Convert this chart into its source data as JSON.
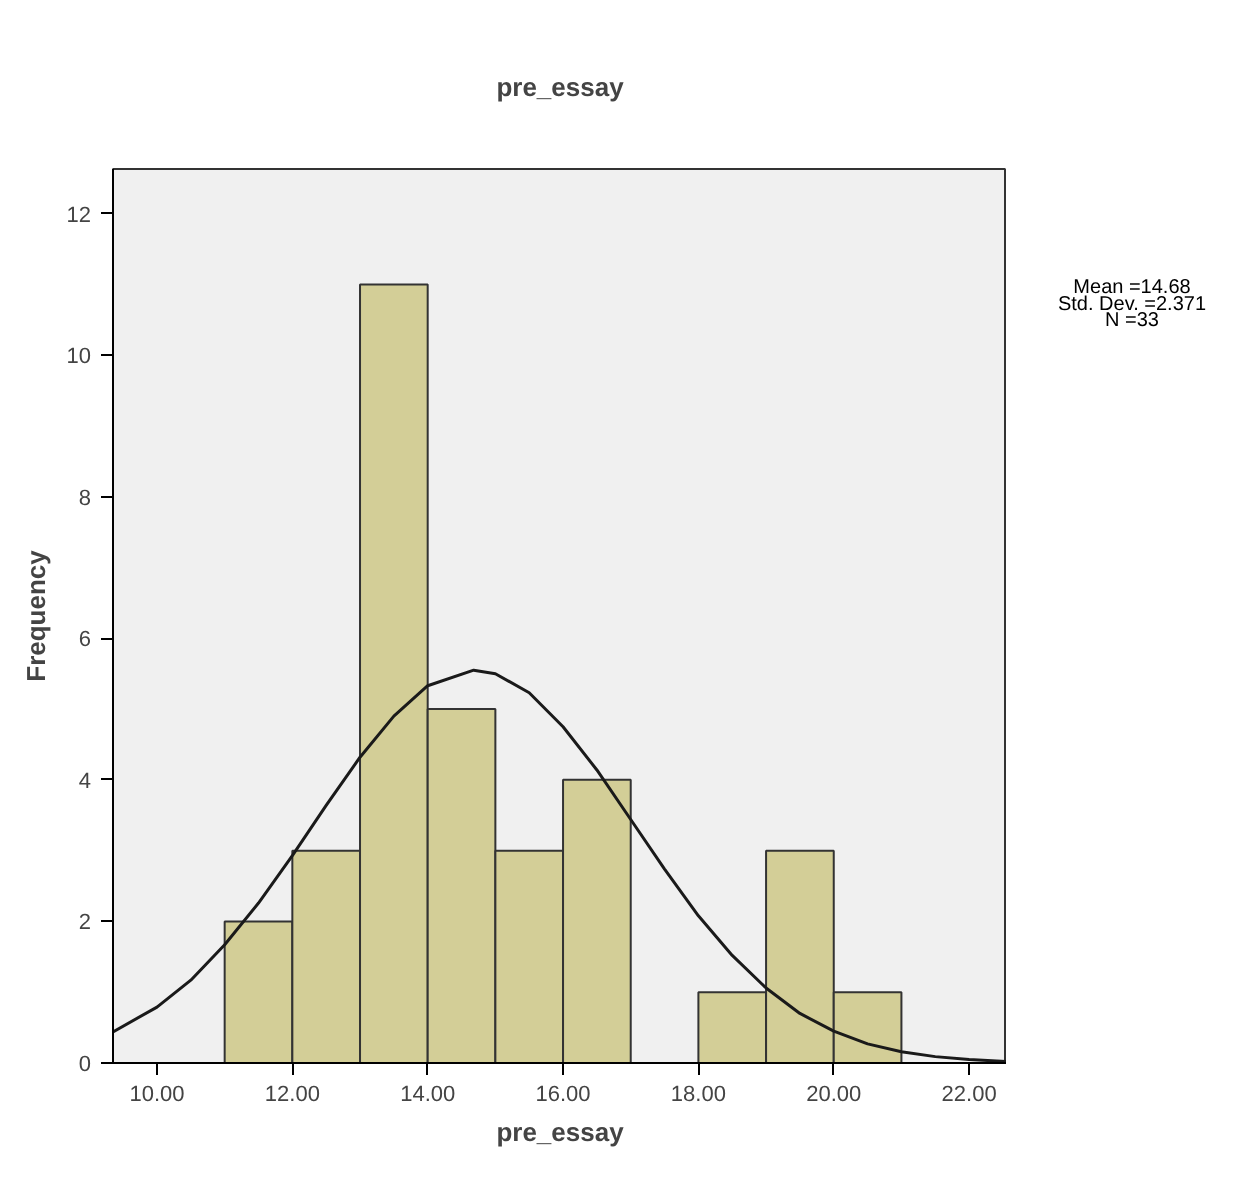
{
  "chart_data": {
    "type": "histogram",
    "title": "pre_essay",
    "xlabel": "pre_essay",
    "ylabel": "Frequency",
    "bins": [
      11,
      12,
      13,
      14,
      15,
      16,
      17,
      18,
      19,
      20,
      21
    ],
    "series": [
      {
        "color": "#d3ce97",
        "values": [
          2,
          3,
          11,
          5,
          3,
          4,
          0,
          1,
          3,
          1
        ]
      },
      {
        "type": "line",
        "color": "#1a1a1a",
        "x": [
          9.35,
          10,
          10.5,
          11,
          11.5,
          12,
          12.5,
          13,
          13.5,
          14,
          14.68,
          15,
          15.5,
          16,
          16.5,
          17,
          17.5,
          18,
          18.5,
          19,
          19.5,
          20,
          20.5,
          21,
          21.5,
          22,
          22.56
        ],
        "values": [
          0.44,
          0.79,
          1.17,
          1.67,
          2.26,
          2.93,
          3.64,
          4.32,
          4.9,
          5.33,
          5.55,
          5.5,
          5.23,
          4.75,
          4.14,
          3.44,
          2.74,
          2.08,
          1.52,
          1.06,
          0.7,
          0.45,
          0.27,
          0.16,
          0.09,
          0.05,
          0.02
        ]
      }
    ],
    "xlim": [
      9.35,
      22.56
    ],
    "ylim": [
      0,
      12.63
    ],
    "xticks": [
      {
        "value": 10,
        "label": "10.00"
      },
      {
        "value": 12,
        "label": "12.00"
      },
      {
        "value": 14,
        "label": "14.00"
      },
      {
        "value": 16,
        "label": "16.00"
      },
      {
        "value": 18,
        "label": "18.00"
      },
      {
        "value": 20,
        "label": "20.00"
      },
      {
        "value": 22,
        "label": "22.00"
      }
    ],
    "yticks": [
      0,
      2,
      4,
      6,
      8,
      10,
      12
    ],
    "grid": false,
    "annotations": [
      "Mean =14.68",
      "Std. Dev. =2.371",
      "N =33"
    ]
  }
}
